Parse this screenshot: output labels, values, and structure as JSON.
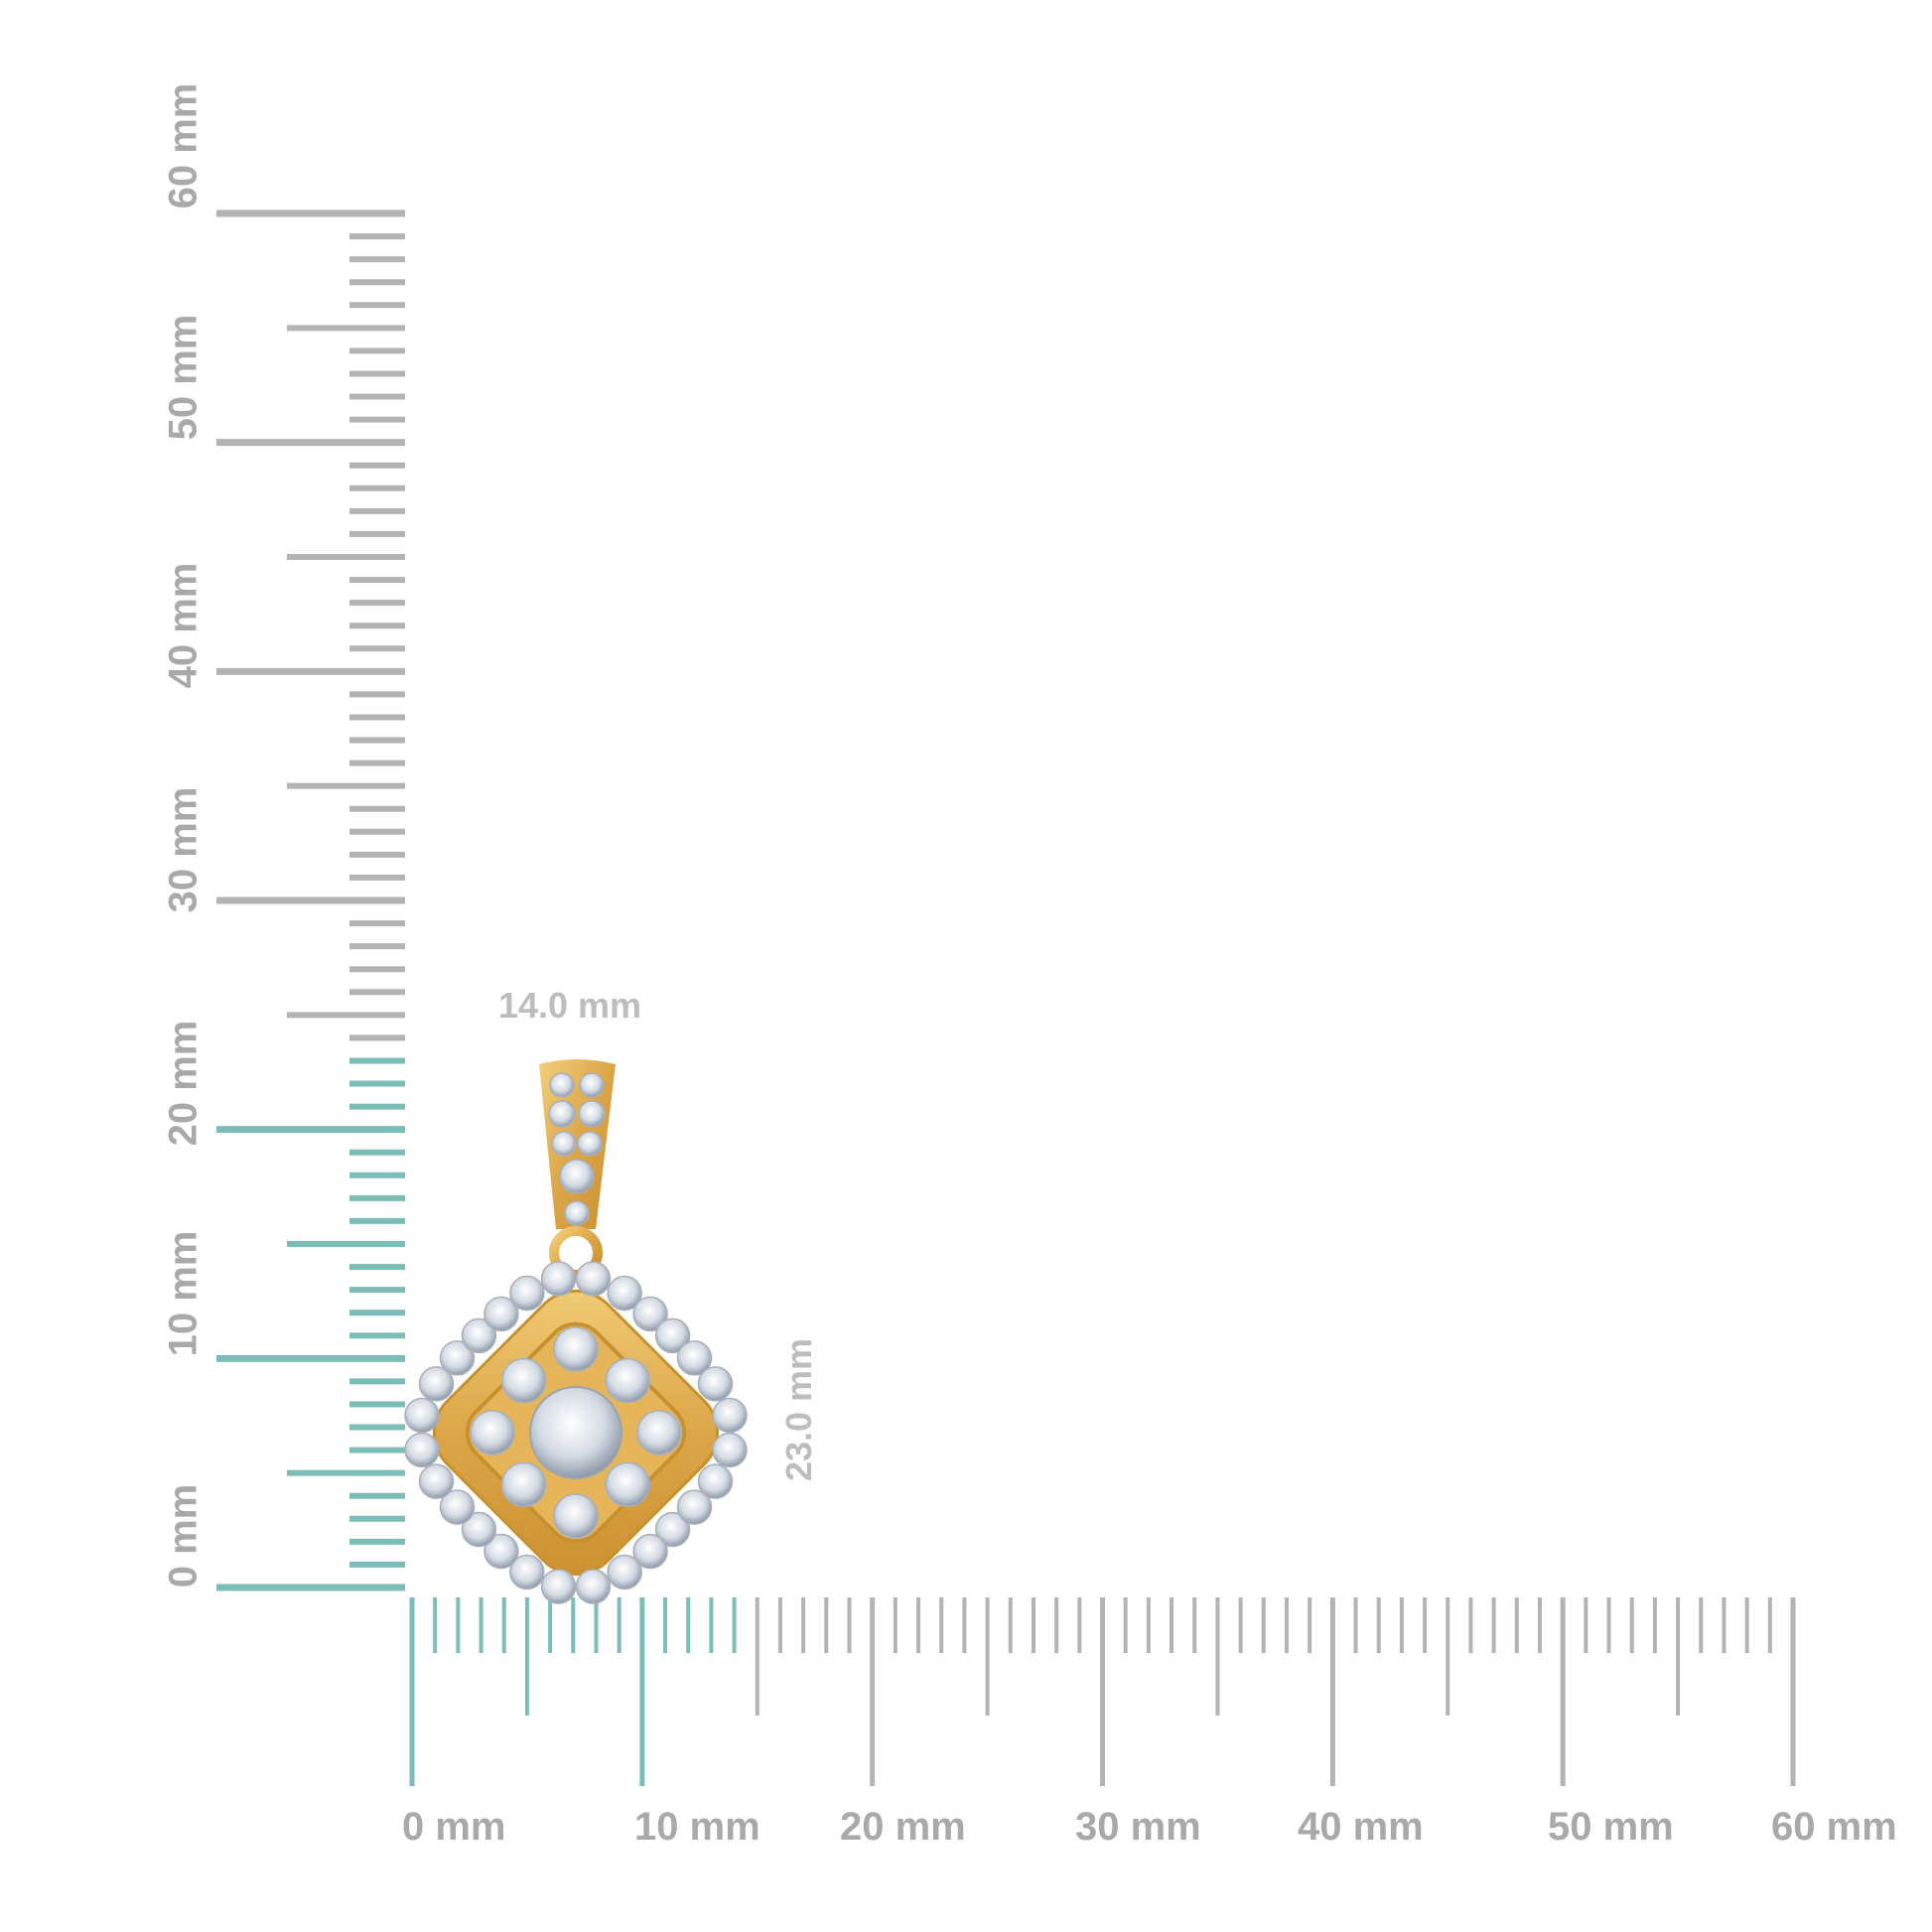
{
  "unit": "mm",
  "vertical_ruler": {
    "range": [
      0,
      60
    ],
    "labels": [
      "0 mm",
      "10 mm",
      "20 mm",
      "30 mm",
      "40 mm",
      "50 mm",
      "60 mm"
    ],
    "highlight_to": 23
  },
  "horizontal_ruler": {
    "range": [
      0,
      60
    ],
    "labels": [
      "0 mm",
      "10 mm",
      "20 mm",
      "30 mm",
      "40 mm",
      "50 mm",
      "60 mm"
    ],
    "highlight_to": 14
  },
  "dimensions": {
    "width_label": "14.0 mm",
    "height_label": "23.0 mm"
  },
  "colors": {
    "highlight_tick": "#7dbdb8",
    "normal_tick": "#b3b3b3",
    "label": "#a9a9a9",
    "gold": "#e0b050",
    "diamond": "#dfe4ea"
  },
  "product": {
    "name": "cushion halo diamond pendant with pave bail"
  }
}
